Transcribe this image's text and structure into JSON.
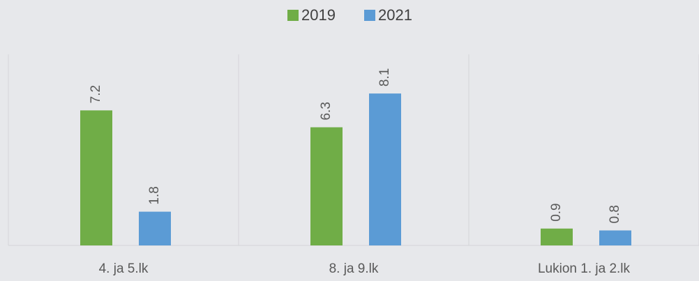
{
  "chart_data": {
    "type": "bar",
    "categories": [
      "4. ja 5.lk",
      "8. ja 9.lk",
      "Lukion 1. ja 2.lk"
    ],
    "series": [
      {
        "name": "2019",
        "color": "#70ad47",
        "values": [
          7.2,
          6.3,
          0.9
        ]
      },
      {
        "name": "2021",
        "color": "#5b9bd5",
        "values": [
          1.8,
          8.1,
          0.8
        ]
      }
    ],
    "ylim": [
      0,
      10
    ],
    "legend": "top"
  }
}
